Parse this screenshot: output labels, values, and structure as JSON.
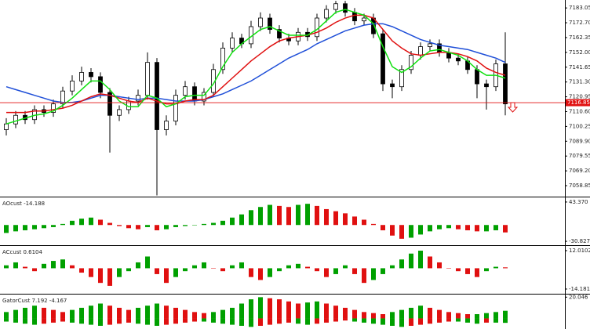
{
  "chart_data": [
    {
      "type": "candlestick",
      "candles": {
        "open": [
          7098,
          7102,
          7108,
          7105,
          7112,
          7110,
          7116,
          7125,
          7132,
          7138,
          7135,
          7124,
          7108,
          7112,
          7118,
          7122,
          7145,
          7098,
          7104,
          7122,
          7128,
          7118,
          7124,
          7140,
          7155,
          7162,
          7158,
          7170,
          7176,
          7168,
          7162,
          7160,
          7166,
          7163,
          7176,
          7182,
          7186,
          7180,
          7174,
          7176,
          7165,
          7130,
          7128,
          7140,
          7150,
          7156,
          7158,
          7152,
          7148,
          7146,
          7140,
          7130,
          7128,
          7144
        ],
        "high": [
          7106,
          7111,
          7111,
          7115,
          7115,
          7119,
          7128,
          7136,
          7142,
          7141,
          7138,
          7127,
          7115,
          7121,
          7126,
          7152,
          7148,
          7108,
          7126,
          7132,
          7131,
          7127,
          7144,
          7159,
          7166,
          7165,
          7174,
          7180,
          7179,
          7171,
          7165,
          7169,
          7169,
          7179,
          7185,
          7188,
          7188,
          7183,
          7179,
          7179,
          7168,
          7133,
          7143,
          7153,
          7159,
          7161,
          7161,
          7155,
          7151,
          7149,
          7143,
          7133,
          7147,
          7166
        ],
        "low": [
          7094,
          7099,
          7102,
          7102,
          7107,
          7107,
          7113,
          7122,
          7129,
          7131,
          7120,
          7082,
          7104,
          7109,
          7115,
          7119,
          7052,
          7094,
          7101,
          7119,
          7115,
          7115,
          7121,
          7137,
          7152,
          7155,
          7155,
          7167,
          7165,
          7159,
          7157,
          7157,
          7160,
          7160,
          7173,
          7179,
          7177,
          7171,
          7171,
          7162,
          7125,
          7120,
          7125,
          7137,
          7147,
          7153,
          7149,
          7145,
          7143,
          7137,
          7120,
          7112,
          7125,
          7108
        ],
        "close": [
          7102,
          7108,
          7105,
          7112,
          7110,
          7116,
          7125,
          7132,
          7138,
          7135,
          7124,
          7108,
          7112,
          7118,
          7122,
          7145,
          7098,
          7104,
          7122,
          7128,
          7118,
          7124,
          7140,
          7155,
          7162,
          7158,
          7170,
          7176,
          7168,
          7162,
          7160,
          7166,
          7163,
          7176,
          7182,
          7186,
          7180,
          7174,
          7176,
          7165,
          7130,
          7128,
          7140,
          7150,
          7156,
          7158,
          7152,
          7148,
          7146,
          7140,
          7130,
          7128,
          7144,
          7116
        ]
      },
      "up_color": "#ffffff",
      "down_color": "#000000",
      "lines": [
        {
          "color": "#1f4fd8",
          "values": [
            7128,
            7126,
            7124,
            7122,
            7120,
            7118,
            7117,
            7117,
            7118,
            7120,
            7122,
            7122,
            7121,
            7120,
            7119,
            7120,
            7120,
            7119,
            7118,
            7118,
            7118,
            7119,
            7121,
            7123,
            7126,
            7129,
            7132,
            7136,
            7140,
            7144,
            7148,
            7151,
            7154,
            7158,
            7161,
            7164,
            7167,
            7169,
            7171,
            7172,
            7172,
            7170,
            7167,
            7164,
            7161,
            7159,
            7157,
            7156,
            7155,
            7154,
            7152,
            7150,
            7148,
            7145
          ]
        },
        {
          "color": "#e01010",
          "values": [
            7110,
            7110,
            7110,
            7111,
            7111,
            7112,
            7113,
            7115,
            7118,
            7121,
            7123,
            7122,
            7120,
            7118,
            7117,
            7120,
            7118,
            7116,
            7116,
            7118,
            7119,
            7119,
            7122,
            7128,
            7134,
            7140,
            7146,
            7151,
            7156,
            7160,
            7162,
            7163,
            7164,
            7166,
            7169,
            7173,
            7176,
            7178,
            7178,
            7176,
            7168,
            7160,
            7155,
            7151,
            7150,
            7151,
            7152,
            7152,
            7151,
            7149,
            7146,
            7141,
            7138,
            7136
          ]
        },
        {
          "color": "#10e010",
          "values": [
            7102,
            7104,
            7106,
            7108,
            7109,
            7111,
            7115,
            7120,
            7126,
            7132,
            7132,
            7126,
            7118,
            7114,
            7114,
            7122,
            7120,
            7114,
            7116,
            7121,
            7122,
            7122,
            7130,
            7142,
            7152,
            7158,
            7163,
            7168,
            7170,
            7167,
            7164,
            7164,
            7164,
            7168,
            7174,
            7180,
            7182,
            7180,
            7178,
            7172,
            7156,
            7142,
            7138,
            7142,
            7148,
            7153,
            7154,
            7152,
            7150,
            7146,
            7140,
            7136,
            7136,
            7134
          ]
        }
      ],
      "price_line": 7116.85,
      "price_line_color": "#e01010",
      "ylim": [
        7051.2,
        7188.6
      ],
      "yticks": [
        7183.05,
        {
          "value": 7172.7,
          "label": "7172.70"
        },
        7162.35,
        {
          "value": 7152,
          "label": "7152.00"
        },
        7141.65,
        {
          "value": 7131.3,
          "label": "7131.30"
        },
        7120.95,
        {
          "value": 7110.6,
          "label": "7110.60"
        },
        7100.25,
        {
          "value": 7089.9,
          "label": "7089.90"
        },
        7079.55,
        {
          "value": 7069.2,
          "label": "7069.20"
        },
        7058.85
      ]
    },
    {
      "type": "bar",
      "title": "AOcust -14.188",
      "values": [
        -15,
        -12,
        -10,
        -8,
        -6,
        -4,
        2,
        8,
        12,
        14,
        10,
        4,
        -2,
        -6,
        -8,
        -4,
        -10,
        -8,
        -4,
        -2,
        0,
        2,
        4,
        8,
        14,
        20,
        28,
        34,
        38,
        36,
        34,
        38,
        40,
        36,
        30,
        26,
        22,
        16,
        10,
        2,
        -10,
        -20,
        -26,
        -24,
        -18,
        -12,
        -8,
        -6,
        -8,
        -10,
        -12,
        -12,
        -10,
        -14
      ],
      "up_color": "#00a000",
      "down_color": "#e01010",
      "ylim": [
        -38.1,
        52.1
      ],
      "yticks": [
        {
          "value": 43.37,
          "label": "43.370"
        },
        -30.827
      ]
    },
    {
      "type": "bar",
      "title": "ACcust 0.6104",
      "values": [
        2,
        4,
        1,
        -2,
        3,
        5,
        6,
        2,
        -3,
        -6,
        -10,
        -12,
        -6,
        -2,
        4,
        8,
        -4,
        -10,
        -6,
        -2,
        2,
        4,
        0,
        -2,
        2,
        4,
        -6,
        -8,
        -6,
        -2,
        2,
        3,
        1,
        -2,
        -6,
        -4,
        2,
        -4,
        -10,
        -8,
        -4,
        2,
        6,
        10,
        12,
        8,
        4,
        0,
        -2,
        -4,
        -6,
        -2,
        1,
        0.6
      ],
      "up_color": "#00a000",
      "down_color": "#e01010",
      "ylim": [
        -17.4,
        15.2
      ],
      "yticks": [
        12.0102,
        -14.1818
      ]
    },
    {
      "type": "bar",
      "title": "GatorCust 7.192 -4.167",
      "series": [
        {
          "values": [
            6,
            8,
            10,
            12,
            10,
            8,
            6,
            8,
            10,
            12,
            14,
            12,
            10,
            8,
            10,
            12,
            14,
            12,
            10,
            8,
            6,
            5,
            6,
            8,
            10,
            14,
            18,
            20,
            19,
            18,
            16,
            14,
            15,
            16,
            14,
            12,
            10,
            8,
            6,
            5,
            4,
            6,
            8,
            10,
            12,
            10,
            8,
            6,
            5,
            4,
            4,
            5,
            6,
            7.2
          ]
        },
        {
          "values": [
            -3,
            -4,
            -5,
            -6,
            -5,
            -4,
            -3,
            -4,
            -5,
            -6,
            -7,
            -6,
            -5,
            -4,
            -5,
            -6,
            -7,
            -6,
            -5,
            -4,
            -3,
            -3,
            -4,
            -5,
            -6,
            -7,
            -8,
            -7,
            -6,
            -5,
            -4,
            -5,
            -6,
            -5,
            -4,
            -3,
            -2,
            -3,
            -4,
            -5,
            -6,
            -7,
            -8,
            -7,
            -6,
            -5,
            -4,
            -3,
            -3,
            -4,
            -5,
            -4,
            -4,
            -4.2
          ]
        }
      ],
      "up_color": "#00a000",
      "down_color": "#e01010",
      "ylim": [
        -10,
        22.5
      ],
      "yticks": [
        20.046
      ]
    }
  ]
}
